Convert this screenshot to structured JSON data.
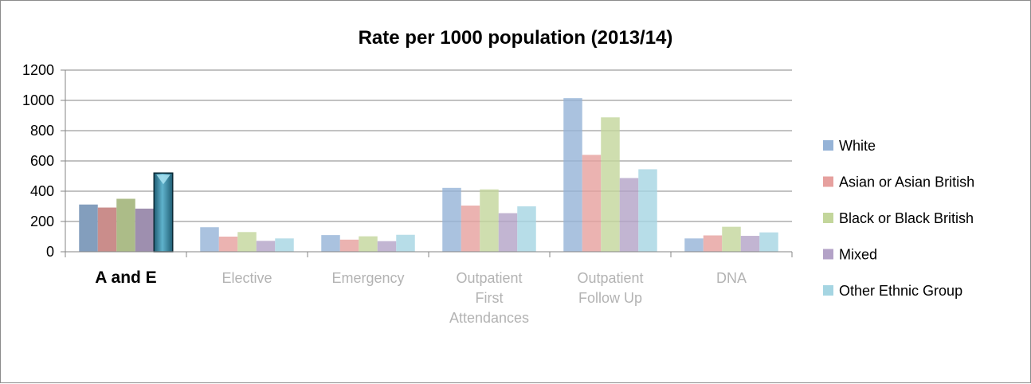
{
  "chart_data": {
    "type": "bar",
    "title": "Rate per 1000 population (2013/14)",
    "xlabel": "",
    "ylabel": "",
    "ylim": [
      0,
      1200
    ],
    "yticks": [
      0,
      200,
      400,
      600,
      800,
      1000,
      1200
    ],
    "grid": true,
    "legend_position": "right",
    "categories": [
      [
        "A and E"
      ],
      [
        "Elective"
      ],
      [
        "Emergency"
      ],
      [
        "Outpatient",
        "First",
        "Attendances"
      ],
      [
        "Outpatient",
        "Follow Up"
      ],
      [
        "DNA"
      ]
    ],
    "highlighted_category": 0,
    "highlighted_point": {
      "category": 0,
      "series": 4
    },
    "series": [
      {
        "name": "White",
        "color": "#95B3D7",
        "values": [
          312,
          162,
          110,
          422,
          1015,
          88
        ]
      },
      {
        "name": "Asian or Asian British",
        "color": "#E6A09E",
        "values": [
          292,
          100,
          80,
          305,
          640,
          108
        ]
      },
      {
        "name": "Black or Black British",
        "color": "#C3D69B",
        "values": [
          350,
          130,
          102,
          412,
          888,
          165
        ]
      },
      {
        "name": "Mixed",
        "color": "#B3A2C7",
        "values": [
          285,
          72,
          70,
          255,
          487,
          105
        ]
      },
      {
        "name": "Other Ethnic Group",
        "color": "#A5D5E2",
        "values": [
          520,
          88,
          112,
          300,
          545,
          128
        ]
      }
    ]
  }
}
